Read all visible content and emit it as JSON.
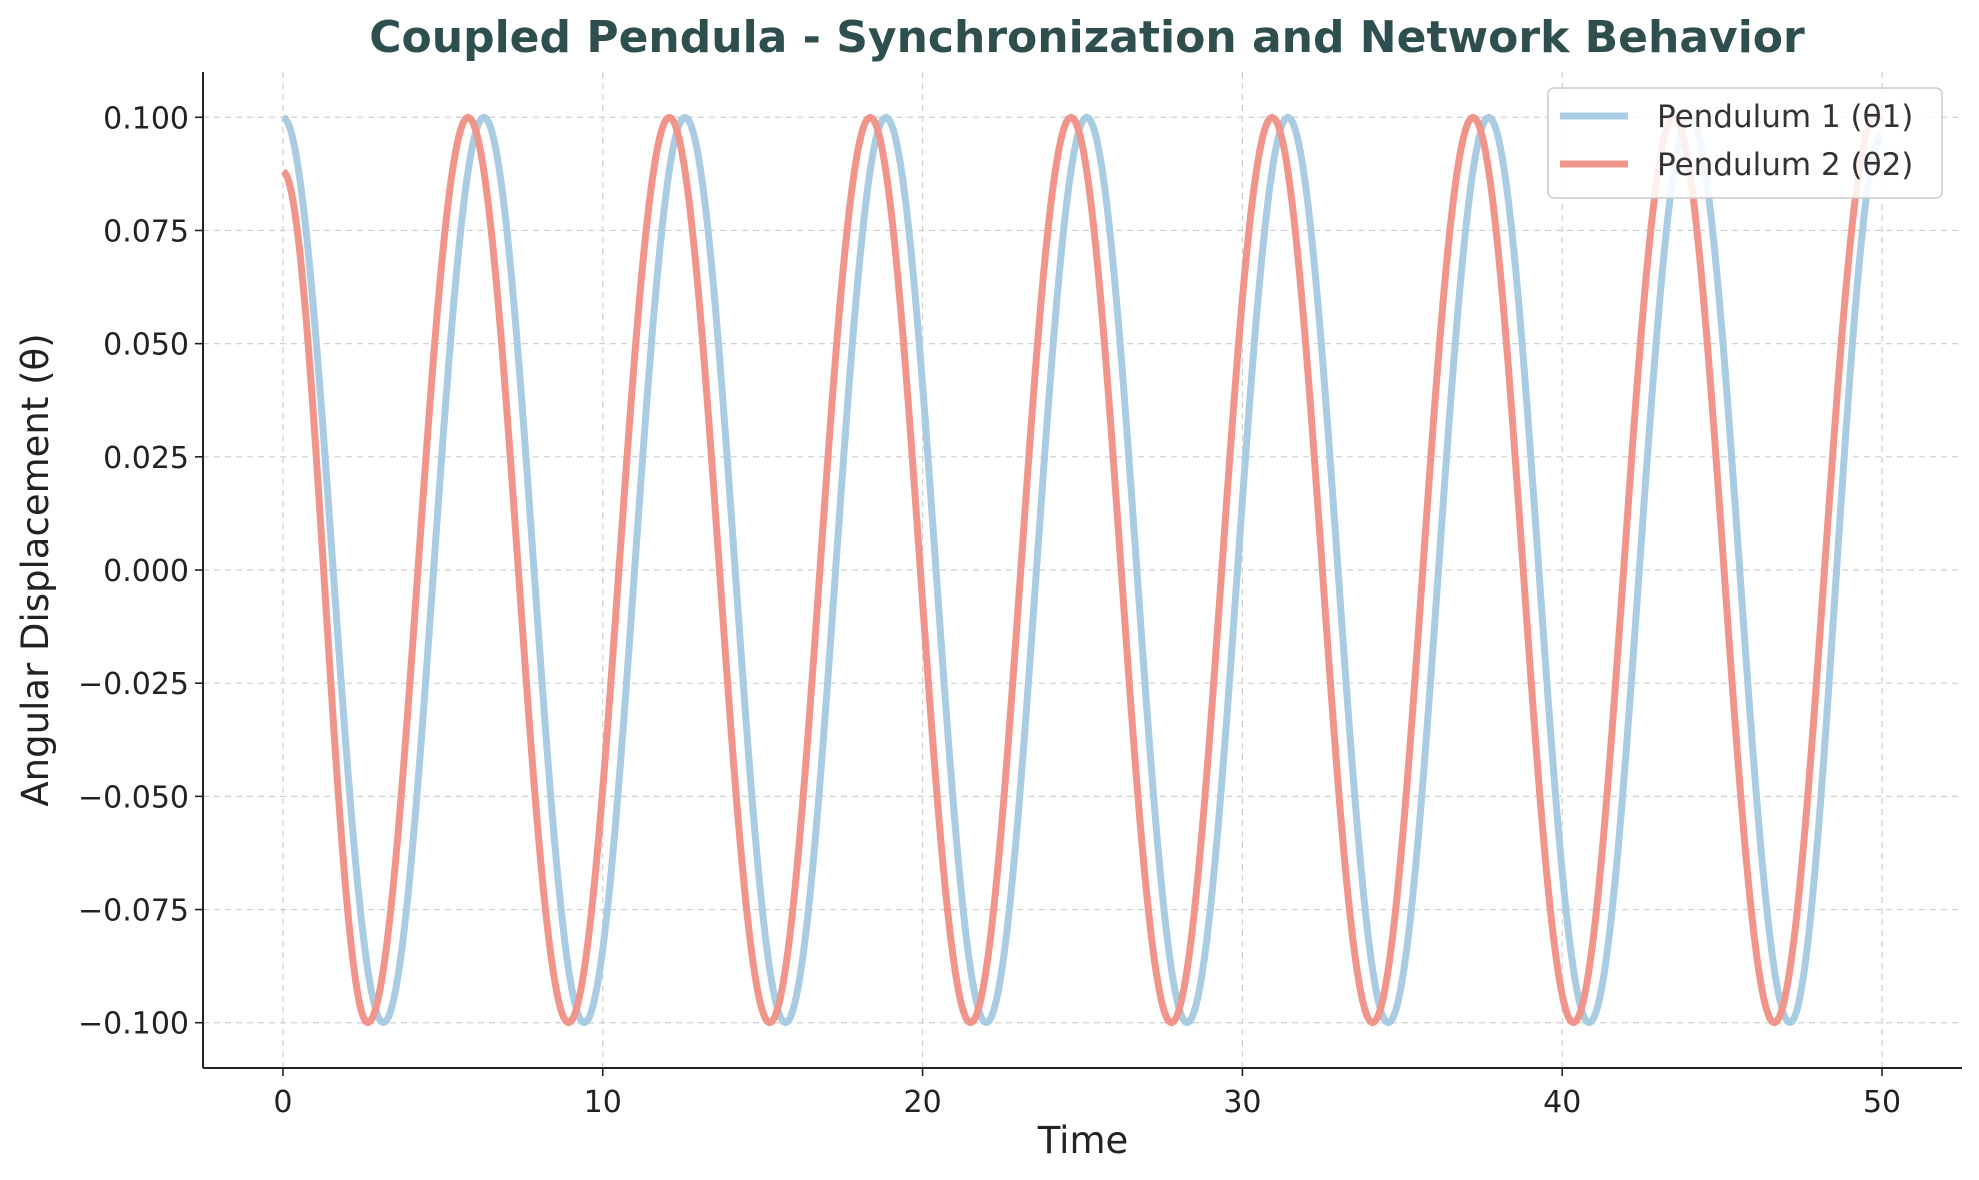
{
  "chart_data": {
    "type": "line",
    "title": "Coupled Pendula - Synchronization and Network Behavior",
    "xlabel": "Time",
    "ylabel": "Angular Displacement (θ)",
    "xlim": [
      -2.5,
      52.5
    ],
    "ylim": [
      -0.11,
      0.11
    ],
    "xticks": [
      0,
      10,
      20,
      30,
      40,
      50
    ],
    "xtick_labels": [
      "0",
      "10",
      "20",
      "30",
      "40",
      "50"
    ],
    "yticks": [
      0.1,
      0.075,
      0.05,
      0.025,
      0.0,
      -0.025,
      -0.05,
      -0.075,
      -0.1
    ],
    "ytick_labels": [
      "0.100",
      "0.075",
      "0.050",
      "0.025",
      "0.000",
      "−0.025",
      "−0.050",
      "−0.075",
      "−0.100"
    ],
    "grid": true,
    "legend_position": "top-right",
    "series": [
      {
        "name": "Pendulum 1 (θ1)",
        "color": "#a9cce3",
        "x": [
          0,
          3.14,
          6.28,
          9.42,
          12.57,
          15.71,
          18.85,
          21.99,
          25.13,
          28.27,
          31.42,
          34.56,
          37.7,
          40.84,
          43.98,
          47.12,
          50
        ],
        "y": [
          0.1,
          -0.1,
          0.1,
          -0.1,
          0.1,
          -0.1,
          0.1,
          -0.1,
          0.1,
          -0.1,
          0.1,
          -0.1,
          0.1,
          -0.1,
          0.1,
          -0.1,
          0.096
        ]
      },
      {
        "name": "Pendulum 2 (θ2)",
        "color": "#f1948a",
        "x": [
          0,
          2.65,
          5.79,
          8.93,
          12.08,
          15.22,
          18.36,
          21.5,
          24.64,
          27.78,
          30.93,
          34.07,
          37.21,
          40.35,
          43.49,
          46.63,
          49.77,
          50
        ],
        "y": [
          0.088,
          -0.1,
          0.1,
          -0.1,
          0.1,
          -0.1,
          0.1,
          -0.1,
          0.1,
          -0.1,
          0.1,
          -0.1,
          0.1,
          -0.1,
          0.1,
          -0.1,
          0.1,
          0.1
        ]
      }
    ]
  }
}
